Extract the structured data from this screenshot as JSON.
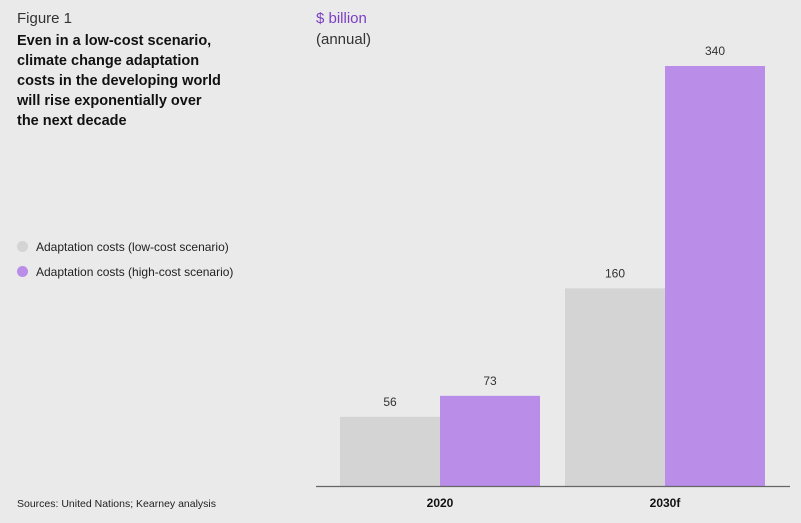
{
  "figure_label": "Figure 1",
  "title": "Even in a low-cost scenario, climate change adaptation costs in the developing world will rise exponentially over the next decade",
  "unit": "$ billion",
  "unit_sub": "(annual)",
  "source": "Sources: United Nations; Kearney analysis",
  "legend": [
    {
      "label": "Adaptation costs (low-cost scenario)",
      "color": "#d4d4d4"
    },
    {
      "label": "Adaptation costs (high-cost scenario)",
      "color": "#b98de8"
    }
  ],
  "chart_data": {
    "type": "bar",
    "categories": [
      "2020",
      "2030f"
    ],
    "series": [
      {
        "name": "Adaptation costs (low-cost scenario)",
        "values": [
          56,
          160
        ],
        "color": "#d4d4d4"
      },
      {
        "name": "Adaptation costs (high-cost scenario)",
        "values": [
          73,
          340
        ],
        "color": "#b98de8"
      }
    ],
    "title": "Even in a low-cost scenario, climate change adaptation costs in the developing world will rise exponentially over the next decade",
    "ylabel": "$ billion (annual)",
    "xlabel": "",
    "ylim": [
      0,
      340
    ],
    "grid": false,
    "legend_position": "left"
  }
}
